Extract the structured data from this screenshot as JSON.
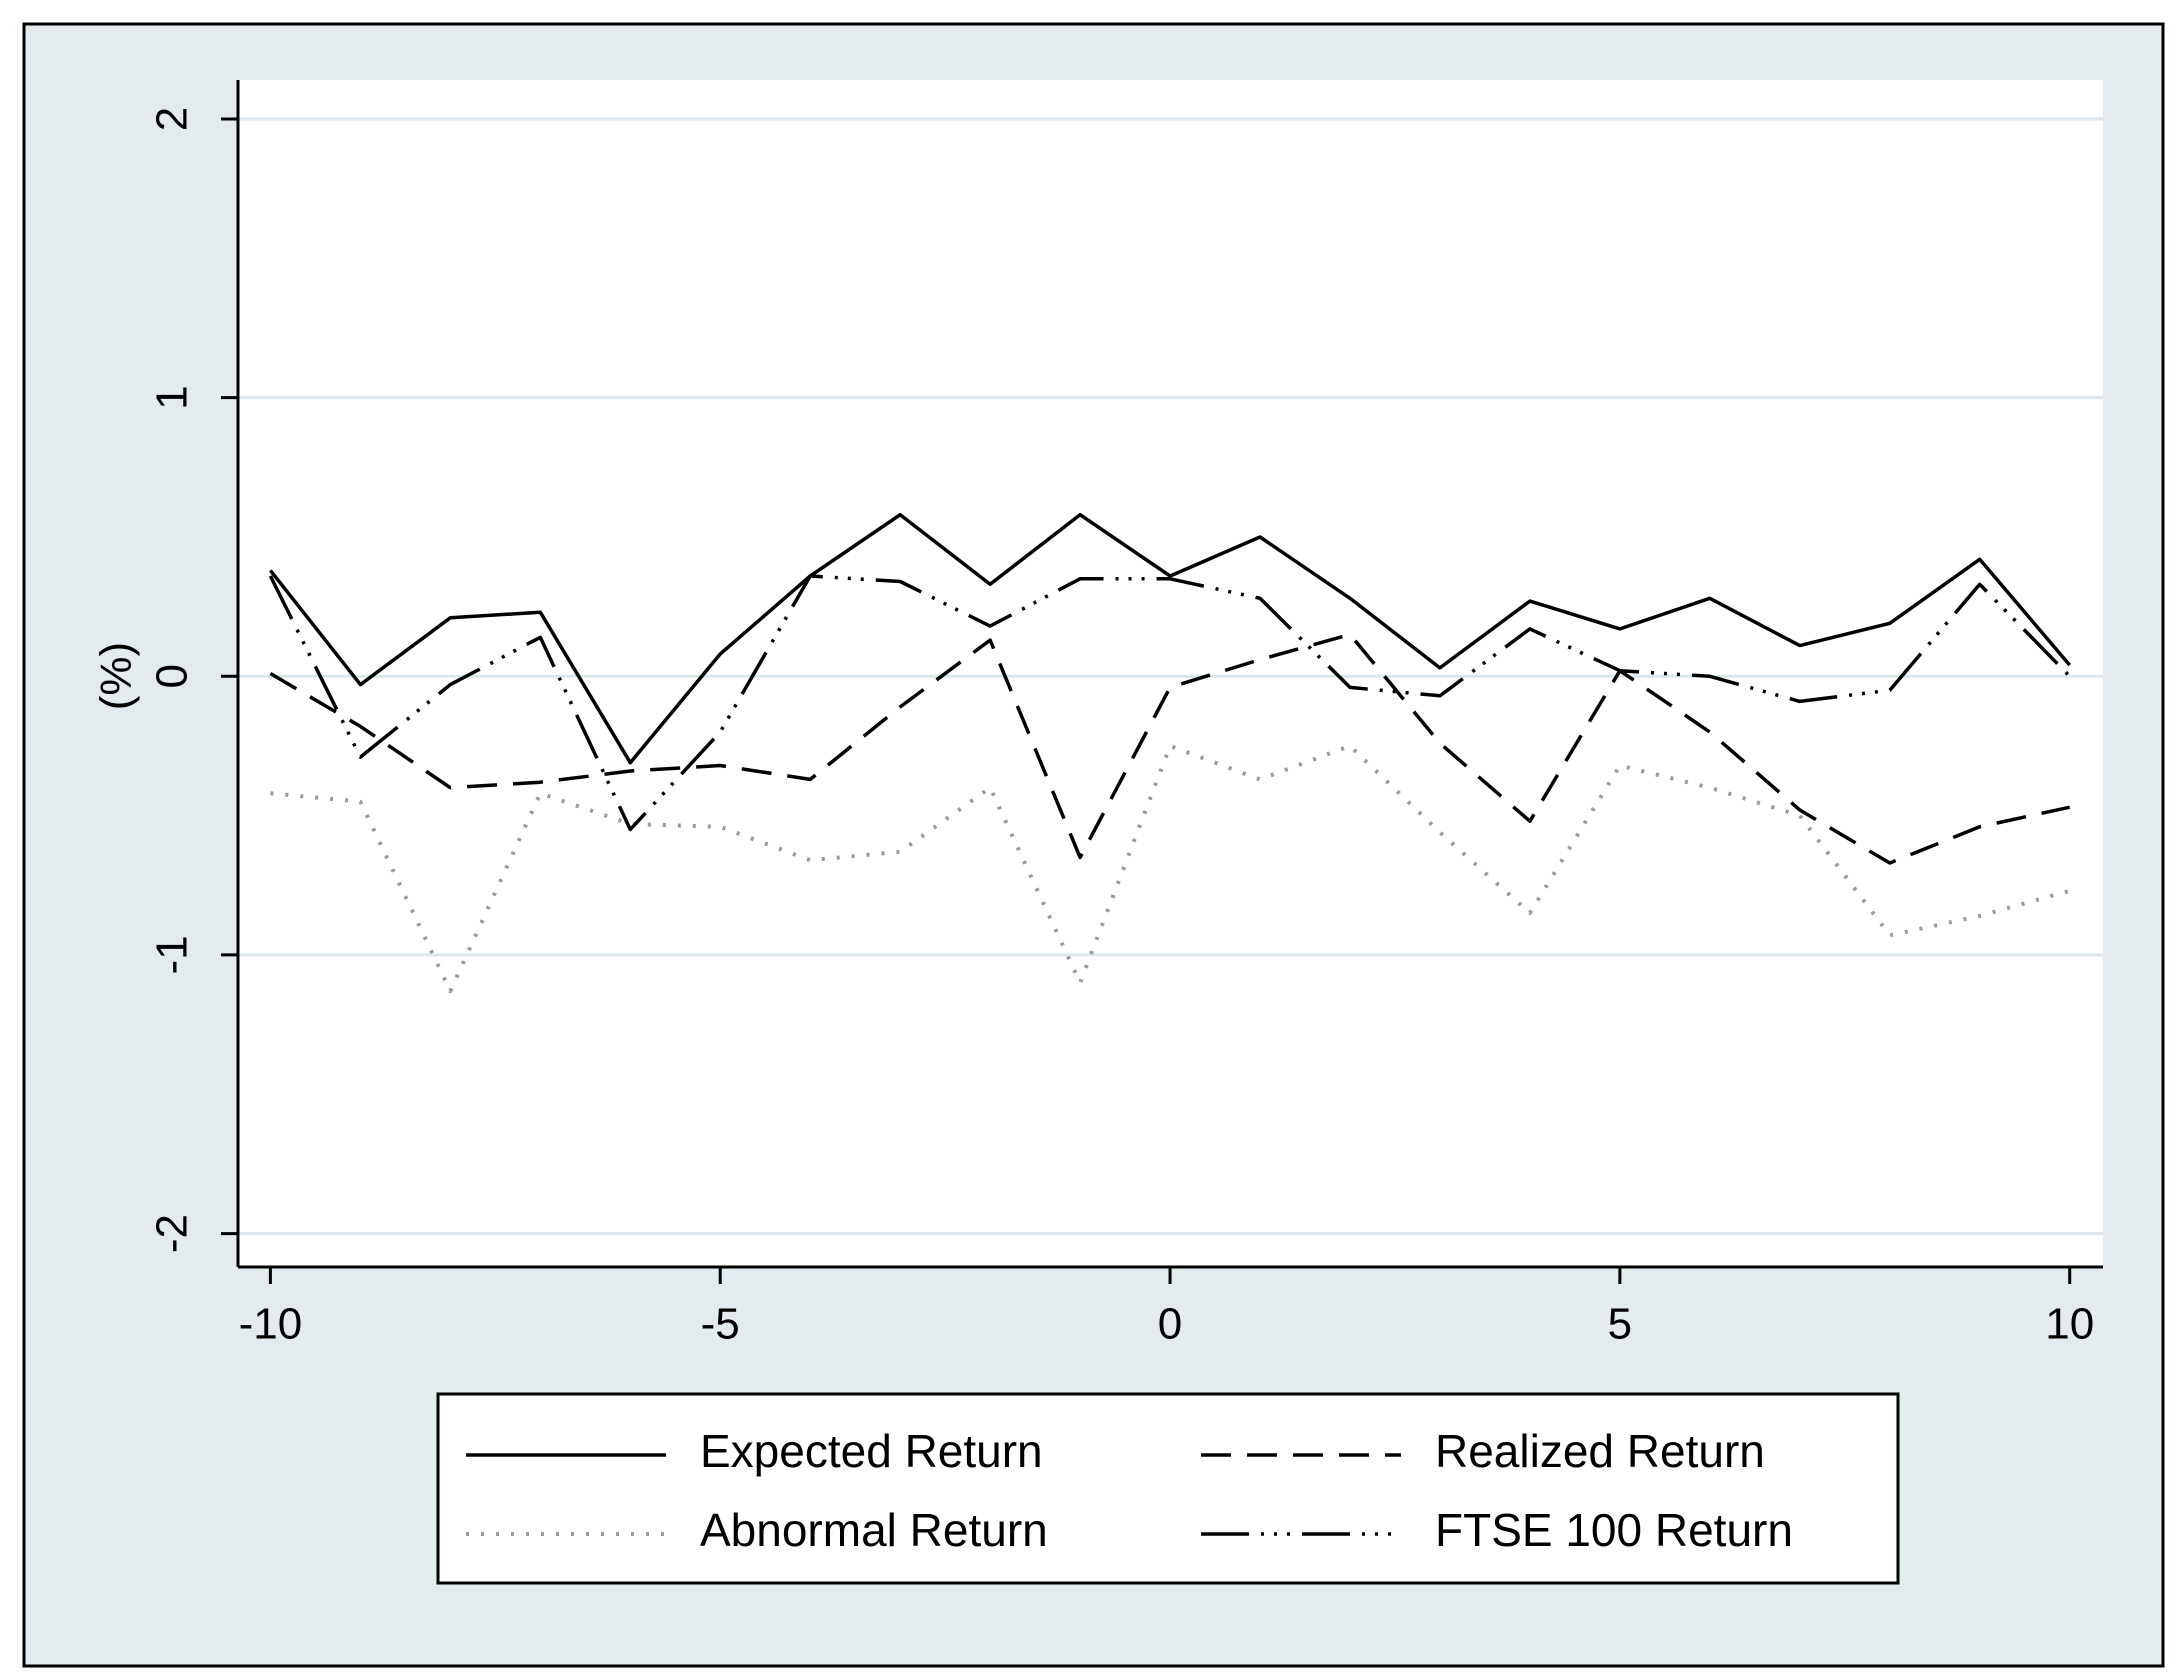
{
  "chart_data": {
    "type": "line",
    "y_label": "(%)",
    "x": [
      -10,
      -9,
      -8,
      -7,
      -6,
      -5,
      -4,
      -3,
      -2,
      -1,
      0,
      1,
      2,
      3,
      4,
      5,
      6,
      7,
      8,
      9,
      10
    ],
    "series": [
      {
        "name": "Expected Return",
        "color": "#000000",
        "values": [
          0.38,
          -0.03,
          0.21,
          0.23,
          -0.31,
          0.08,
          0.36,
          0.58,
          0.33,
          0.58,
          0.36,
          0.5,
          0.28,
          0.03,
          0.27,
          0.17,
          0.28,
          0.11,
          0.19,
          0.42,
          0.04
        ]
      },
      {
        "name": "Realized Return",
        "color": "#000000",
        "values": [
          0.01,
          -0.18,
          -0.4,
          -0.38,
          -0.34,
          -0.32,
          -0.37,
          -0.11,
          0.13,
          -0.65,
          -0.04,
          0.06,
          0.15,
          -0.24,
          -0.52,
          0.02,
          -0.2,
          -0.48,
          -0.67,
          -0.54,
          -0.47
        ]
      },
      {
        "name": "Abnormal Return",
        "color": "#9a9a9a",
        "values": [
          -0.42,
          -0.45,
          -1.13,
          -0.42,
          -0.53,
          -0.54,
          -0.66,
          -0.63,
          -0.4,
          -1.1,
          -0.25,
          -0.37,
          -0.25,
          -0.56,
          -0.85,
          -0.32,
          -0.4,
          -0.5,
          -0.93,
          -0.86,
          -0.77
        ]
      },
      {
        "name": "FTSE 100 Return",
        "color": "#000000",
        "values": [
          0.36,
          -0.29,
          -0.03,
          0.14,
          -0.55,
          -0.2,
          0.36,
          0.34,
          0.18,
          0.35,
          0.35,
          0.28,
          -0.04,
          -0.07,
          0.17,
          0.02,
          0.0,
          -0.09,
          -0.05,
          0.33,
          0.0
        ]
      }
    ],
    "xlim": [
      -10.36,
      10.37
    ],
    "ylim": [
      -2.12,
      2.14
    ],
    "xticks": [
      -10,
      -5,
      0,
      5,
      10
    ],
    "yticks": [
      -2,
      -1,
      0,
      1,
      2
    ],
    "grid": true,
    "legend": "bottom"
  }
}
